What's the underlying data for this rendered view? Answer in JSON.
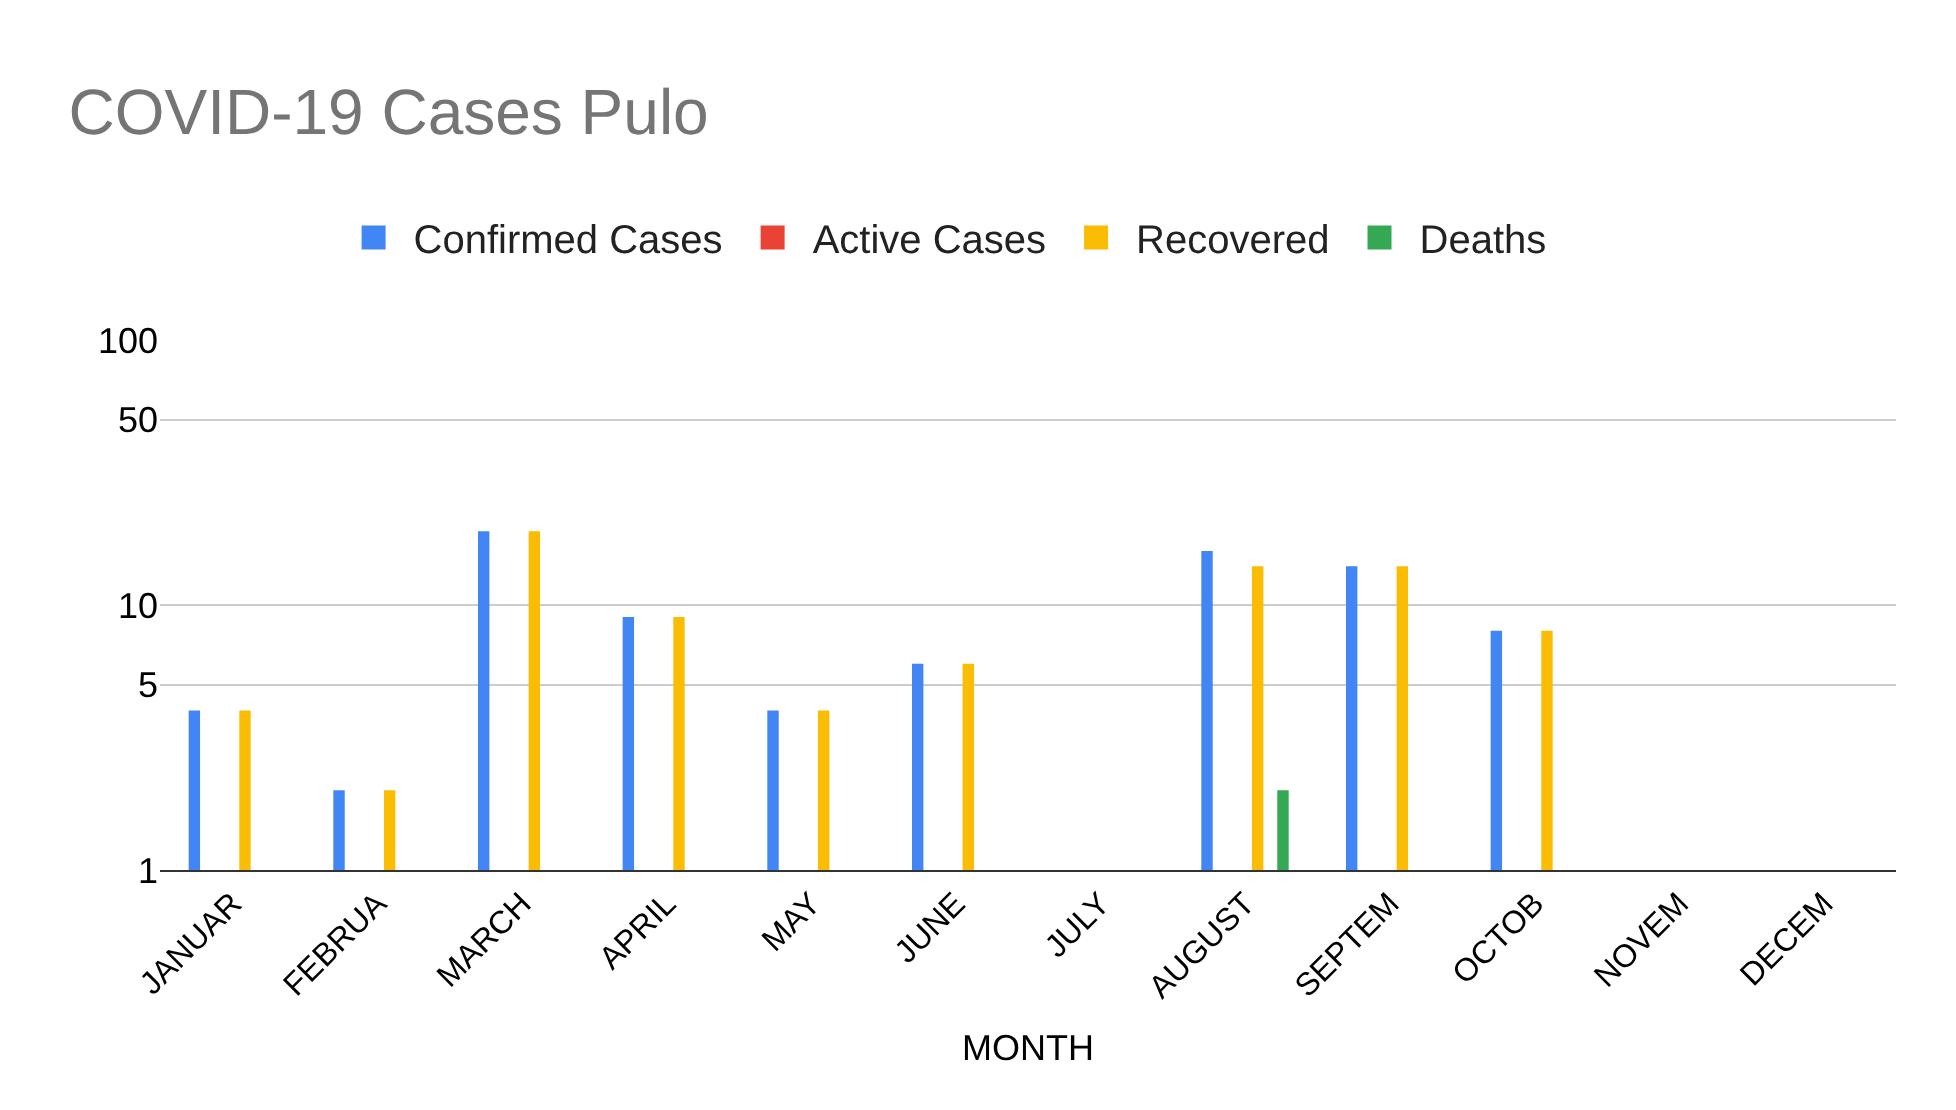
{
  "chart_data": {
    "type": "bar",
    "title": "COVID-19 Cases Pulo",
    "xlabel": "MONTH",
    "categories": [
      "JANUAR",
      "FEBRUA",
      "MARCH",
      "APRIL",
      "MAY",
      "JUNE",
      "JULY",
      "AUGUST",
      "SEPTEM",
      "OCTOB",
      "NOVEM",
      "DECEM"
    ],
    "series": [
      {
        "name": "Confirmed Cases",
        "color": "#4285f4",
        "values": [
          4,
          2,
          19,
          9,
          4,
          6,
          null,
          16,
          14,
          8,
          null,
          null
        ]
      },
      {
        "name": "Active Cases",
        "color": "#ea4335",
        "values": [
          null,
          null,
          null,
          null,
          null,
          null,
          null,
          null,
          null,
          null,
          null,
          null
        ]
      },
      {
        "name": "Recovered",
        "color": "#fbbc04",
        "values": [
          4,
          2,
          19,
          9,
          4,
          6,
          null,
          14,
          14,
          8,
          null,
          null
        ]
      },
      {
        "name": "Deaths",
        "color": "#34a853",
        "values": [
          null,
          null,
          null,
          null,
          null,
          null,
          null,
          2,
          null,
          null,
          null,
          null
        ]
      }
    ],
    "log": "y",
    "ylim": [
      1,
      100
    ],
    "yticks": [
      1,
      5,
      10,
      50,
      100
    ],
    "grid": "y",
    "legend": "top"
  }
}
